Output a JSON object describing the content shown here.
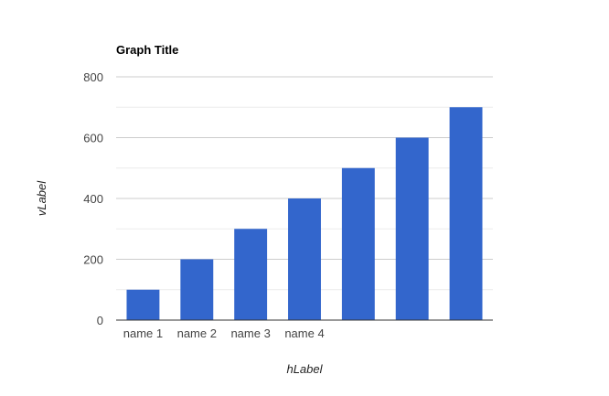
{
  "chart_data": {
    "type": "bar",
    "title": "Graph Title",
    "xlabel": "hLabel",
    "ylabel": "vLabel",
    "categories": [
      "name 1",
      "name 2",
      "name 3",
      "name 4",
      "",
      "",
      ""
    ],
    "values": [
      100,
      200,
      300,
      400,
      500,
      600,
      700
    ],
    "ylim": [
      0,
      800
    ],
    "yticks": [
      0,
      200,
      400,
      600,
      800
    ],
    "grid": true,
    "legend": "none",
    "colors": {
      "bar": "#3366cc",
      "major_grid": "#cccccc",
      "minor_grid": "#ebebeb",
      "baseline": "#333333"
    }
  }
}
